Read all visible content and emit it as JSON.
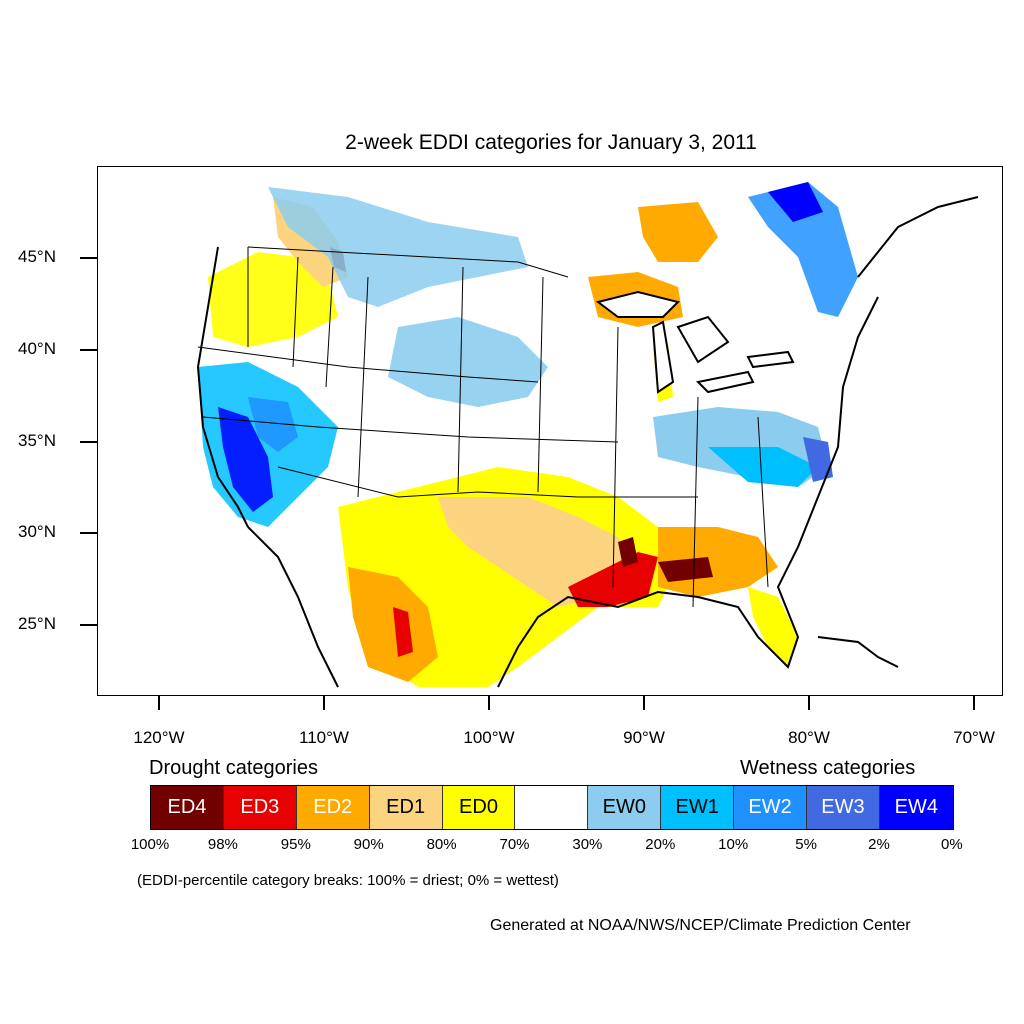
{
  "title": "2-week EDDI categories for January 3, 2011",
  "map": {
    "lat_labels": [
      "45°N",
      "40°N",
      "35°N",
      "30°N",
      "25°N"
    ],
    "lon_labels": [
      "120°W",
      "110°W",
      "100°W",
      "90°W",
      "80°W",
      "70°W"
    ]
  },
  "legend": {
    "drought_heading": "Drought categories",
    "wetness_heading": "Wetness categories",
    "categories": [
      {
        "label": "ED4",
        "color": "#730000",
        "text_color": "#ffffff"
      },
      {
        "label": "ED3",
        "color": "#e60000",
        "text_color": "#ffffff"
      },
      {
        "label": "ED2",
        "color": "#ffaa00",
        "text_color": "#ffffff"
      },
      {
        "label": "ED1",
        "color": "#fcd37f",
        "text_color": "#000000"
      },
      {
        "label": "ED0",
        "color": "#ffff00",
        "text_color": "#000000"
      },
      {
        "label": "",
        "color": "#ffffff",
        "text_color": "#000000"
      },
      {
        "label": "EW0",
        "color": "#8ccdef",
        "text_color": "#000000"
      },
      {
        "label": "EW1",
        "color": "#00bfff",
        "text_color": "#000000"
      },
      {
        "label": "EW2",
        "color": "#1e90ff",
        "text_color": "#ffffff"
      },
      {
        "label": "EW3",
        "color": "#4169e1",
        "text_color": "#ffffff"
      },
      {
        "label": "EW4",
        "color": "#0000ff",
        "text_color": "#ffffff"
      }
    ],
    "breaks": [
      "100%",
      "98%",
      "95%",
      "90%",
      "80%",
      "70%",
      "30%",
      "20%",
      "10%",
      "5%",
      "2%",
      "0%"
    ],
    "note": "(EDDI-percentile category breaks: 100% = driest; 0% = wettest)"
  },
  "credit": "Generated at NOAA/NWS/NCEP/Climate Prediction Center"
}
